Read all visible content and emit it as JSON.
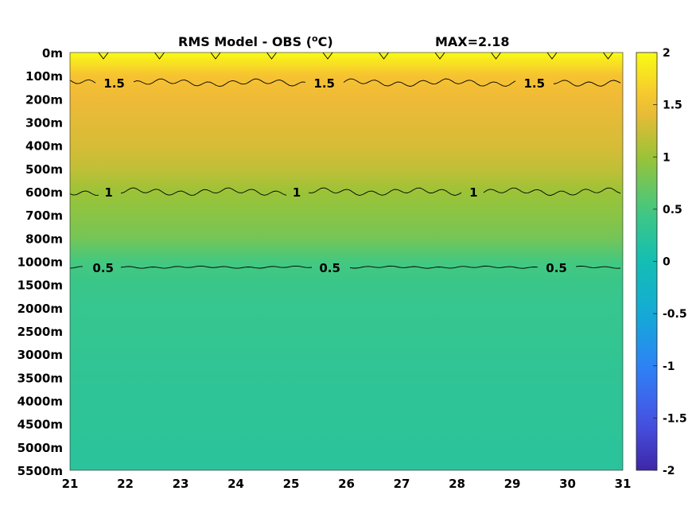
{
  "chart_data": {
    "type": "heatmap",
    "title": "RMS Model - OBS (",
    "title_sup": "o",
    "title_unit": "C)",
    "max_label": "MAX=2.18",
    "x_ticks": [
      "21",
      "22",
      "23",
      "24",
      "25",
      "26",
      "27",
      "28",
      "29",
      "30",
      "31"
    ],
    "xlim": [
      21,
      31
    ],
    "y_ticks": [
      "0m",
      "100m",
      "200m",
      "300m",
      "400m",
      "500m",
      "600m",
      "700m",
      "800m",
      "1000m",
      "1500m",
      "2000m",
      "2500m",
      "3000m",
      "3500m",
      "4000m",
      "4500m",
      "5000m",
      "5500m"
    ],
    "colorbar": {
      "range": [
        -2,
        2
      ],
      "ticks": [
        "2",
        "1.5",
        "1",
        "0.5",
        "0",
        "-0.5",
        "-1",
        "-1.5",
        "-2"
      ],
      "tick_values": [
        2,
        1.5,
        1,
        0.5,
        0,
        -0.5,
        -1,
        -1.5,
        -2
      ],
      "colormap": "parula"
    },
    "depth_profile": [
      2.05,
      1.55,
      1.45,
      1.38,
      1.32,
      1.2,
      1.0,
      0.9,
      0.78,
      0.5,
      0.4,
      0.36,
      0.34,
      0.32,
      0.3,
      0.28,
      0.27,
      0.25,
      0.24
    ],
    "contour_levels": [
      {
        "label": "1.5",
        "value": 1.5,
        "depth_row": 1.3,
        "label_x": [
          21.8,
          25.6,
          29.4
        ]
      },
      {
        "label": "1",
        "value": 1,
        "depth_row": 6.0,
        "label_x": [
          21.7,
          25.1,
          28.3
        ]
      },
      {
        "label": "0.5",
        "value": 0.5,
        "depth_row": 9.25,
        "label_x": [
          21.6,
          25.7,
          29.8
        ]
      }
    ]
  }
}
